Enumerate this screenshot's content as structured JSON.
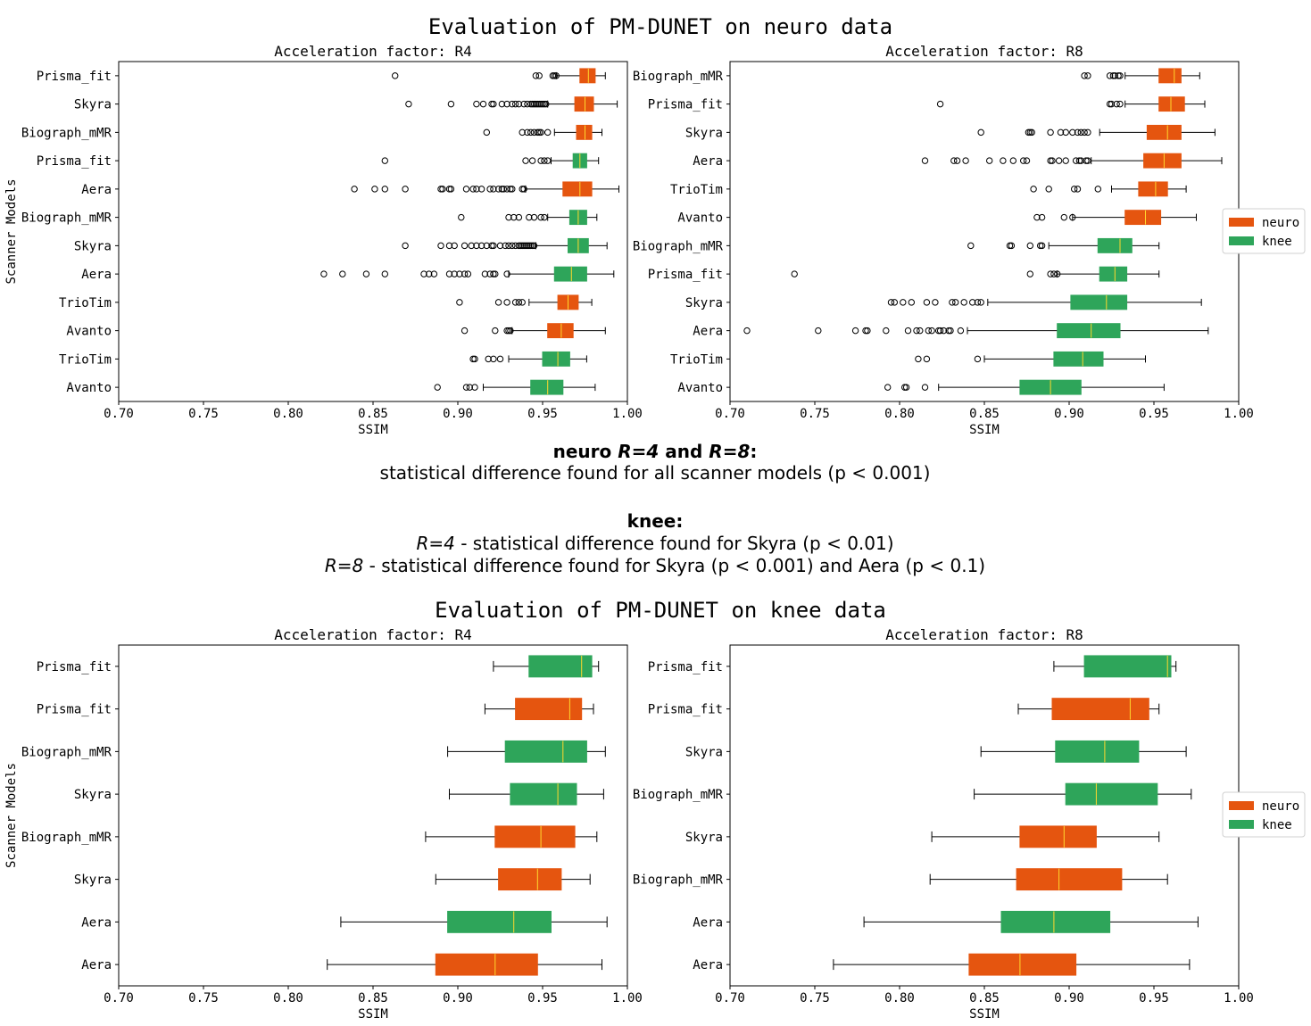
{
  "figure": {
    "title_neuro": "Evaluation of PM-DUNET on neuro data",
    "title_knee": "Evaluation of PM-DUNET on knee data",
    "stats_neuro_heading": [
      "neuro ",
      "R=4",
      " and ",
      "R=8",
      ":"
    ],
    "stats_neuro_line": "statistical difference found for all scanner models (p < 0.001)",
    "stats_knee_heading": "knee:",
    "stats_knee_line1": [
      "R=4",
      " - statistical difference found for Skyra (p < 0.01)"
    ],
    "stats_knee_line2": [
      "R=8",
      " - statistical difference found for Skyra (p < 0.001) and Aera (p < 0.1)"
    ]
  },
  "colors": {
    "neuro": "#e5550f",
    "knee": "#2ea55a",
    "median": "#ffd82e"
  },
  "legend": {
    "placement": "right",
    "entries": [
      {
        "label": "neuro",
        "group": "neuro"
      },
      {
        "label": "knee",
        "group": "knee"
      }
    ]
  },
  "chart_data": [
    {
      "type": "boxplot",
      "orientation": "horizontal",
      "title": "Acceleration factor: R4",
      "xlabel": "SSIM",
      "ylabel": "Scanner Models",
      "xlim": [
        0.7,
        1.0
      ],
      "xticks": [
        "0.70",
        "0.75",
        "0.80",
        "0.85",
        "0.90",
        "0.95",
        "1.00"
      ],
      "boxes": [
        {
          "label": "Prisma_fit",
          "group": "neuro",
          "whisker_low": 0.958,
          "q1": 0.972,
          "median": 0.977,
          "q3": 0.981,
          "whisker_high": 0.987,
          "outliers": [
            0.863,
            0.946,
            0.948,
            0.956,
            0.957,
            0.958
          ]
        },
        {
          "label": "Skyra",
          "group": "neuro",
          "whisker_low": 0.953,
          "q1": 0.969,
          "median": 0.975,
          "q3": 0.98,
          "whisker_high": 0.994,
          "outliers": [
            0.871,
            0.896,
            0.911,
            0.915,
            0.92,
            0.921,
            0.926,
            0.929,
            0.932,
            0.934,
            0.936,
            0.939,
            0.941,
            0.943,
            0.944,
            0.945,
            0.946,
            0.947,
            0.948,
            0.949,
            0.95,
            0.951,
            0.952
          ]
        },
        {
          "label": "Biograph_mMR",
          "group": "neuro",
          "whisker_low": 0.957,
          "q1": 0.97,
          "median": 0.975,
          "q3": 0.979,
          "whisker_high": 0.985,
          "outliers": [
            0.917,
            0.938,
            0.941,
            0.943,
            0.945,
            0.947,
            0.948,
            0.949,
            0.953
          ]
        },
        {
          "label": "Prisma_fit",
          "group": "knee",
          "whisker_low": 0.955,
          "q1": 0.968,
          "median": 0.972,
          "q3": 0.976,
          "whisker_high": 0.983,
          "outliers": [
            0.857,
            0.94,
            0.944,
            0.949,
            0.951,
            0.953
          ]
        },
        {
          "label": "Aera",
          "group": "neuro",
          "whisker_low": 0.94,
          "q1": 0.962,
          "median": 0.972,
          "q3": 0.979,
          "whisker_high": 0.995,
          "outliers": [
            0.839,
            0.851,
            0.857,
            0.869,
            0.89,
            0.891,
            0.895,
            0.896,
            0.905,
            0.909,
            0.911,
            0.914,
            0.919,
            0.921,
            0.924,
            0.926,
            0.927,
            0.929,
            0.931,
            0.932,
            0.938,
            0.939
          ]
        },
        {
          "label": "Biograph_mMR",
          "group": "knee",
          "whisker_low": 0.953,
          "q1": 0.966,
          "median": 0.971,
          "q3": 0.976,
          "whisker_high": 0.982,
          "outliers": [
            0.902,
            0.93,
            0.933,
            0.936,
            0.942,
            0.945,
            0.949,
            0.951
          ]
        },
        {
          "label": "Skyra",
          "group": "knee",
          "whisker_low": 0.946,
          "q1": 0.965,
          "median": 0.971,
          "q3": 0.977,
          "whisker_high": 0.988,
          "outliers": [
            0.869,
            0.89,
            0.895,
            0.898,
            0.904,
            0.908,
            0.911,
            0.914,
            0.917,
            0.92,
            0.921,
            0.925,
            0.928,
            0.93,
            0.932,
            0.934,
            0.936,
            0.937,
            0.938,
            0.939,
            0.94,
            0.941,
            0.942,
            0.943,
            0.944,
            0.945
          ]
        },
        {
          "label": "Aera",
          "group": "knee",
          "whisker_low": 0.93,
          "q1": 0.957,
          "median": 0.967,
          "q3": 0.976,
          "whisker_high": 0.992,
          "outliers": [
            0.821,
            0.832,
            0.846,
            0.857,
            0.88,
            0.883,
            0.886,
            0.895,
            0.898,
            0.901,
            0.904,
            0.906,
            0.916,
            0.919,
            0.921,
            0.922,
            0.929
          ]
        },
        {
          "label": "TrioTim",
          "group": "neuro",
          "whisker_low": 0.942,
          "q1": 0.959,
          "median": 0.965,
          "q3": 0.971,
          "whisker_high": 0.979,
          "outliers": [
            0.901,
            0.924,
            0.929,
            0.934,
            0.936,
            0.938
          ]
        },
        {
          "label": "Avanto",
          "group": "neuro",
          "whisker_low": 0.932,
          "q1": 0.953,
          "median": 0.961,
          "q3": 0.968,
          "whisker_high": 0.987,
          "outliers": [
            0.904,
            0.922,
            0.929,
            0.93,
            0.931
          ]
        },
        {
          "label": "TrioTim",
          "group": "knee",
          "whisker_low": 0.93,
          "q1": 0.95,
          "median": 0.959,
          "q3": 0.966,
          "whisker_high": 0.976,
          "outliers": [
            0.909,
            0.91,
            0.918,
            0.921,
            0.925
          ]
        },
        {
          "label": "Avanto",
          "group": "knee",
          "whisker_low": 0.915,
          "q1": 0.943,
          "median": 0.953,
          "q3": 0.962,
          "whisker_high": 0.981,
          "outliers": [
            0.888,
            0.905,
            0.907,
            0.91
          ]
        }
      ]
    },
    {
      "type": "boxplot",
      "orientation": "horizontal",
      "title": "Acceleration factor: R8",
      "xlabel": "SSIM",
      "ylabel": "",
      "xlim": [
        0.7,
        1.0
      ],
      "xticks": [
        "0.70",
        "0.75",
        "0.80",
        "0.85",
        "0.90",
        "0.95",
        "1.00"
      ],
      "boxes": [
        {
          "label": "Biograph_mMR",
          "group": "neuro",
          "whisker_low": 0.933,
          "q1": 0.953,
          "median": 0.962,
          "q3": 0.966,
          "whisker_high": 0.977,
          "outliers": [
            0.909,
            0.911,
            0.924,
            0.926,
            0.927,
            0.929,
            0.93
          ]
        },
        {
          "label": "Prisma_fit",
          "group": "neuro",
          "whisker_low": 0.933,
          "q1": 0.953,
          "median": 0.96,
          "q3": 0.968,
          "whisker_high": 0.98,
          "outliers": [
            0.824,
            0.924,
            0.925,
            0.928,
            0.93
          ]
        },
        {
          "label": "Skyra",
          "group": "neuro",
          "whisker_low": 0.918,
          "q1": 0.946,
          "median": 0.958,
          "q3": 0.966,
          "whisker_high": 0.986,
          "outliers": [
            0.848,
            0.876,
            0.877,
            0.878,
            0.889,
            0.895,
            0.898,
            0.902,
            0.905,
            0.907,
            0.909,
            0.911
          ]
        },
        {
          "label": "Aera",
          "group": "neuro",
          "whisker_low": 0.913,
          "q1": 0.944,
          "median": 0.956,
          "q3": 0.966,
          "whisker_high": 0.99,
          "outliers": [
            0.815,
            0.832,
            0.834,
            0.839,
            0.853,
            0.861,
            0.867,
            0.873,
            0.875,
            0.889,
            0.89,
            0.894,
            0.898,
            0.904,
            0.906,
            0.907,
            0.91,
            0.911
          ]
        },
        {
          "label": "TrioTim",
          "group": "neuro",
          "whisker_low": 0.925,
          "q1": 0.941,
          "median": 0.951,
          "q3": 0.958,
          "whisker_high": 0.969,
          "outliers": [
            0.879,
            0.888,
            0.903,
            0.905,
            0.917
          ]
        },
        {
          "label": "Avanto",
          "group": "neuro",
          "whisker_low": 0.902,
          "q1": 0.933,
          "median": 0.945,
          "q3": 0.954,
          "whisker_high": 0.975,
          "outliers": [
            0.881,
            0.884,
            0.897,
            0.902
          ]
        },
        {
          "label": "Biograph_mMR",
          "group": "knee",
          "whisker_low": 0.888,
          "q1": 0.917,
          "median": 0.93,
          "q3": 0.937,
          "whisker_high": 0.953,
          "outliers": [
            0.842,
            0.865,
            0.866,
            0.877,
            0.883,
            0.884
          ]
        },
        {
          "label": "Prisma_fit",
          "group": "knee",
          "whisker_low": 0.893,
          "q1": 0.918,
          "median": 0.927,
          "q3": 0.934,
          "whisker_high": 0.953,
          "outliers": [
            0.738,
            0.877,
            0.889,
            0.891,
            0.893
          ]
        },
        {
          "label": "Skyra",
          "group": "knee",
          "whisker_low": 0.852,
          "q1": 0.901,
          "median": 0.922,
          "q3": 0.934,
          "whisker_high": 0.978,
          "outliers": [
            0.795,
            0.797,
            0.802,
            0.807,
            0.816,
            0.821,
            0.831,
            0.833,
            0.838,
            0.843,
            0.846,
            0.848
          ]
        },
        {
          "label": "Aera",
          "group": "knee",
          "whisker_low": 0.84,
          "q1": 0.893,
          "median": 0.913,
          "q3": 0.93,
          "whisker_high": 0.982,
          "outliers": [
            0.71,
            0.752,
            0.774,
            0.78,
            0.781,
            0.792,
            0.805,
            0.81,
            0.812,
            0.817,
            0.819,
            0.823,
            0.824,
            0.826,
            0.829,
            0.83,
            0.836
          ]
        },
        {
          "label": "TrioTim",
          "group": "knee",
          "whisker_low": 0.85,
          "q1": 0.891,
          "median": 0.908,
          "q3": 0.92,
          "whisker_high": 0.945,
          "outliers": [
            0.811,
            0.816,
            0.846
          ]
        },
        {
          "label": "Avanto",
          "group": "knee",
          "whisker_low": 0.823,
          "q1": 0.871,
          "median": 0.889,
          "q3": 0.907,
          "whisker_high": 0.956,
          "outliers": [
            0.793,
            0.803,
            0.804,
            0.815
          ]
        }
      ]
    },
    {
      "type": "boxplot",
      "orientation": "horizontal",
      "title": "Acceleration factor: R4",
      "xlabel": "SSIM",
      "ylabel": "Scanner Models",
      "xlim": [
        0.7,
        1.0
      ],
      "xticks": [
        "0.70",
        "0.75",
        "0.80",
        "0.85",
        "0.90",
        "0.95",
        "1.00"
      ],
      "boxes": [
        {
          "label": "Prisma_fit",
          "group": "knee",
          "whisker_low": 0.921,
          "q1": 0.942,
          "median": 0.973,
          "q3": 0.979,
          "whisker_high": 0.983,
          "outliers": []
        },
        {
          "label": "Prisma_fit",
          "group": "neuro",
          "whisker_low": 0.916,
          "q1": 0.934,
          "median": 0.966,
          "q3": 0.973,
          "whisker_high": 0.98,
          "outliers": []
        },
        {
          "label": "Biograph_mMR",
          "group": "knee",
          "whisker_low": 0.894,
          "q1": 0.928,
          "median": 0.962,
          "q3": 0.976,
          "whisker_high": 0.987,
          "outliers": []
        },
        {
          "label": "Skyra",
          "group": "knee",
          "whisker_low": 0.895,
          "q1": 0.931,
          "median": 0.959,
          "q3": 0.97,
          "whisker_high": 0.986,
          "outliers": []
        },
        {
          "label": "Biograph_mMR",
          "group": "neuro",
          "whisker_low": 0.881,
          "q1": 0.922,
          "median": 0.949,
          "q3": 0.969,
          "whisker_high": 0.982,
          "outliers": []
        },
        {
          "label": "Skyra",
          "group": "neuro",
          "whisker_low": 0.887,
          "q1": 0.924,
          "median": 0.947,
          "q3": 0.961,
          "whisker_high": 0.978,
          "outliers": []
        },
        {
          "label": "Aera",
          "group": "knee",
          "whisker_low": 0.831,
          "q1": 0.894,
          "median": 0.933,
          "q3": 0.955,
          "whisker_high": 0.988,
          "outliers": []
        },
        {
          "label": "Aera",
          "group": "neuro",
          "whisker_low": 0.823,
          "q1": 0.887,
          "median": 0.922,
          "q3": 0.947,
          "whisker_high": 0.985,
          "outliers": []
        }
      ]
    },
    {
      "type": "boxplot",
      "orientation": "horizontal",
      "title": "Acceleration factor: R8",
      "xlabel": "SSIM",
      "ylabel": "",
      "xlim": [
        0.7,
        1.0
      ],
      "xticks": [
        "0.70",
        "0.75",
        "0.80",
        "0.85",
        "0.90",
        "0.95",
        "1.00"
      ],
      "boxes": [
        {
          "label": "Prisma_fit",
          "group": "knee",
          "whisker_low": 0.891,
          "q1": 0.909,
          "median": 0.958,
          "q3": 0.96,
          "whisker_high": 0.963,
          "outliers": []
        },
        {
          "label": "Prisma_fit",
          "group": "neuro",
          "whisker_low": 0.87,
          "q1": 0.89,
          "median": 0.936,
          "q3": 0.947,
          "whisker_high": 0.953,
          "outliers": []
        },
        {
          "label": "Skyra",
          "group": "knee",
          "whisker_low": 0.848,
          "q1": 0.892,
          "median": 0.921,
          "q3": 0.941,
          "whisker_high": 0.969,
          "outliers": []
        },
        {
          "label": "Biograph_mMR",
          "group": "knee",
          "whisker_low": 0.844,
          "q1": 0.898,
          "median": 0.916,
          "q3": 0.952,
          "whisker_high": 0.972,
          "outliers": []
        },
        {
          "label": "Skyra",
          "group": "neuro",
          "whisker_low": 0.819,
          "q1": 0.871,
          "median": 0.897,
          "q3": 0.916,
          "whisker_high": 0.953,
          "outliers": []
        },
        {
          "label": "Biograph_mMR",
          "group": "neuro",
          "whisker_low": 0.818,
          "q1": 0.869,
          "median": 0.894,
          "q3": 0.931,
          "whisker_high": 0.958,
          "outliers": []
        },
        {
          "label": "Aera",
          "group": "knee",
          "whisker_low": 0.779,
          "q1": 0.86,
          "median": 0.891,
          "q3": 0.924,
          "whisker_high": 0.976,
          "outliers": []
        },
        {
          "label": "Aera",
          "group": "neuro",
          "whisker_low": 0.761,
          "q1": 0.841,
          "median": 0.871,
          "q3": 0.904,
          "whisker_high": 0.971,
          "outliers": []
        }
      ]
    }
  ]
}
